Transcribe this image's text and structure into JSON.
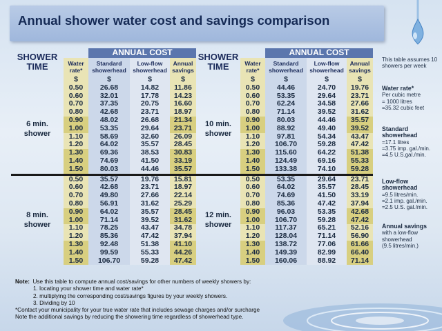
{
  "title": "Annual shower water cost and savings comparison",
  "header": {
    "shower_time_1": "SHOWER",
    "shower_time_2": "TIME",
    "annual_cost": "ANNUAL COST",
    "water_rate_1": "Water",
    "water_rate_2": "rate*",
    "standard_1": "Standard",
    "standard_2": "showerhead",
    "lowflow_1": "Low-flow",
    "lowflow_2": "showerhead",
    "savings_1": "Annual",
    "savings_2": "savings",
    "dollar": "$"
  },
  "groups": [
    {
      "left_1": "6 min.",
      "left_2": "shower",
      "right_1": "10 min.",
      "right_2": "shower"
    },
    {
      "left_1": "8 min.",
      "left_2": "shower",
      "right_1": "12 min.",
      "right_2": "shower"
    }
  ],
  "rows": [
    [
      [
        "0.50",
        "26.68",
        "14.82",
        "11.86"
      ],
      [
        "0.50",
        "44.46",
        "24.70",
        "19.76"
      ]
    ],
    [
      [
        "0.60",
        "32.01",
        "17.78",
        "14.23"
      ],
      [
        "0.60",
        "53.35",
        "29.64",
        "23.71"
      ]
    ],
    [
      [
        "0.70",
        "37.35",
        "20.75",
        "16.60"
      ],
      [
        "0.70",
        "62.24",
        "34.58",
        "27.66"
      ]
    ],
    [
      [
        "0.80",
        "42.68",
        "23.71",
        "18.97"
      ],
      [
        "0.80",
        "71.14",
        "39.52",
        "31.62"
      ]
    ],
    [
      [
        "0.90",
        "48.02",
        "26.68",
        "21.34"
      ],
      [
        "0.90",
        "80.03",
        "44.46",
        "35.57"
      ]
    ],
    [
      [
        "1.00",
        "53.35",
        "29.64",
        "23.71"
      ],
      [
        "1.00",
        "88.92",
        "49.40",
        "39.52"
      ]
    ],
    [
      [
        "1.10",
        "58.69",
        "32.60",
        "26.09"
      ],
      [
        "1.10",
        "97.81",
        "54.34",
        "43.47"
      ]
    ],
    [
      [
        "1.20",
        "64.02",
        "35.57",
        "28.45"
      ],
      [
        "1.20",
        "106.70",
        "59.28",
        "47.42"
      ]
    ],
    [
      [
        "1.30",
        "69.36",
        "38.53",
        "30.83"
      ],
      [
        "1.30",
        "115.60",
        "64.22",
        "51.38"
      ]
    ],
    [
      [
        "1.40",
        "74.69",
        "41.50",
        "33.19"
      ],
      [
        "1.40",
        "124.49",
        "69.16",
        "55.33"
      ]
    ],
    [
      [
        "1.50",
        "80.03",
        "44.46",
        "35.57"
      ],
      [
        "1.50",
        "133.38",
        "74.10",
        "59.28"
      ]
    ],
    [
      [
        "0.50",
        "35.57",
        "19.76",
        "15.81"
      ],
      [
        "0.50",
        "53.35",
        "29.64",
        "23.71"
      ]
    ],
    [
      [
        "0.60",
        "42.68",
        "23.71",
        "18.97"
      ],
      [
        "0.60",
        "64.02",
        "35.57",
        "28.45"
      ]
    ],
    [
      [
        "0.70",
        "49.80",
        "27.66",
        "22.14"
      ],
      [
        "0.70",
        "74.69",
        "41.50",
        "33.19"
      ]
    ],
    [
      [
        "0.80",
        "56.91",
        "31.62",
        "25.29"
      ],
      [
        "0.80",
        "85.36",
        "47.42",
        "37.94"
      ]
    ],
    [
      [
        "0.90",
        "64.02",
        "35.57",
        "28.45"
      ],
      [
        "0.90",
        "96.03",
        "53.35",
        "42.68"
      ]
    ],
    [
      [
        "1.00",
        "71.14",
        "39.52",
        "31.62"
      ],
      [
        "1.00",
        "106.70",
        "59.28",
        "47.42"
      ]
    ],
    [
      [
        "1.10",
        "78.25",
        "43.47",
        "34.78"
      ],
      [
        "1.10",
        "117.37",
        "65.21",
        "52.16"
      ]
    ],
    [
      [
        "1.20",
        "85.36",
        "47.42",
        "37.94"
      ],
      [
        "1.20",
        "128.04",
        "71.14",
        "56.90"
      ]
    ],
    [
      [
        "1.30",
        "92.48",
        "51.38",
        "41.10"
      ],
      [
        "1.30",
        "138.72",
        "77.06",
        "61.66"
      ]
    ],
    [
      [
        "1.40",
        "99.59",
        "55.33",
        "44.26"
      ],
      [
        "1.40",
        "149.39",
        "82.99",
        "66.40"
      ]
    ],
    [
      [
        "1.50",
        "106.70",
        "59.28",
        "47.42"
      ],
      [
        "1.50",
        "160.06",
        "88.92",
        "71.14"
      ]
    ]
  ],
  "side": {
    "intro": "This table assumes 10 showers per week",
    "rate_title": "Water rate*",
    "rate_1": "Per cubic metre",
    "rate_2": "= 1000 litres",
    "rate_3": "=35.32 cubic feet",
    "std_title_1": "Standard",
    "std_title_2": "showerhead",
    "std_1": "=17.1 litres",
    "std_2": "=3.75 imp. gal./min.",
    "std_3": "=4.5 U.S.gal./min.",
    "low_title_1": "Low-flow",
    "low_title_2": "showerhead",
    "low_1": "=9.5 litres/min.",
    "low_2": "=2.1 imp. gal./min.",
    "low_3": "=2.5 U.S. gal./min.",
    "sav_title": "Annual savings",
    "sav_1": "with a low-flow",
    "sav_2": "showerhead",
    "sav_3": "(9.5 litres/min.)"
  },
  "notes": {
    "note_label": "Note:",
    "note_text": "Use this table to compute annual cost/savings for other numbers of weekly showers by:",
    "step1": "1.  locating your shower time and water rate*",
    "step2": "2.  multiplying the corresponding cost/savings figures by your weekly showers.",
    "step3": "3. Dividing by 10",
    "contact": "*Contact your municipality for your true water rate that includes sewage charges and/or surcharge",
    "additional": "Note the additional savings by reducing the showering time regardless of showerhead type."
  }
}
